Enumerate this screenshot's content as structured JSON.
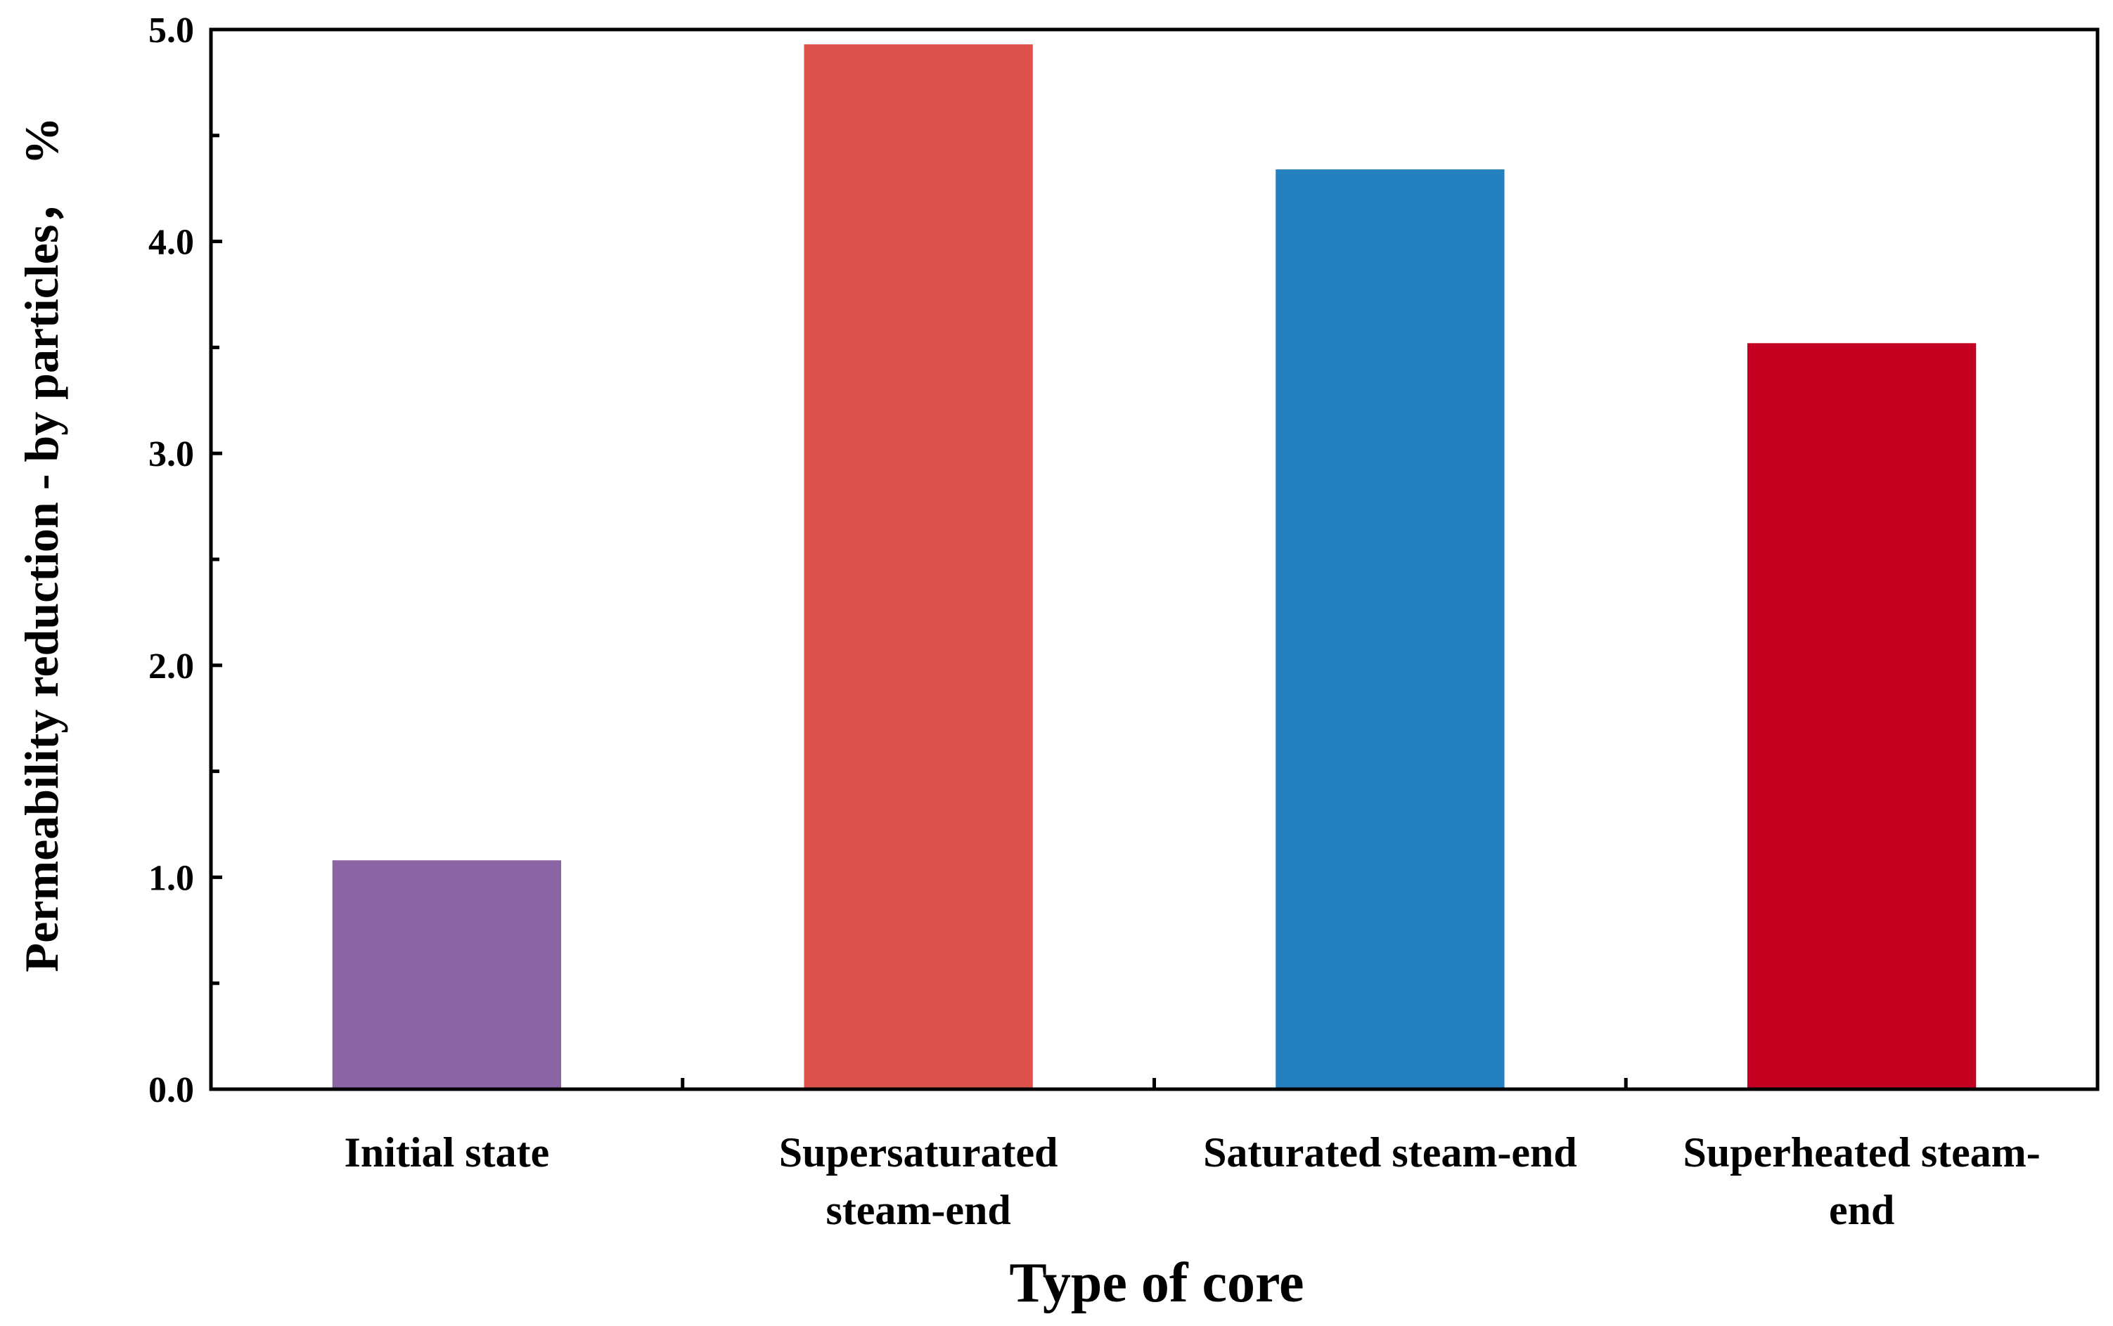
{
  "chart_data": {
    "type": "bar",
    "title": "",
    "xlabel": "Type of core",
    "ylabel": "Permeability reduction - by particles， %",
    "ylim": [
      0,
      5
    ],
    "yticks": [
      "0.0",
      "1.0",
      "2.0",
      "3.0",
      "4.0",
      "5.0"
    ],
    "grid": false,
    "legend": "none",
    "categories": [
      [
        "Initial state"
      ],
      [
        "Supersaturated",
        "steam-end"
      ],
      [
        "Saturated steam-end"
      ],
      [
        "Superheated steam-",
        "end"
      ]
    ],
    "values": [
      1.08,
      4.93,
      4.34,
      3.52
    ],
    "colors": [
      "#8B64A4",
      "#DE524E",
      "#2580C0",
      "#C3001F"
    ]
  }
}
